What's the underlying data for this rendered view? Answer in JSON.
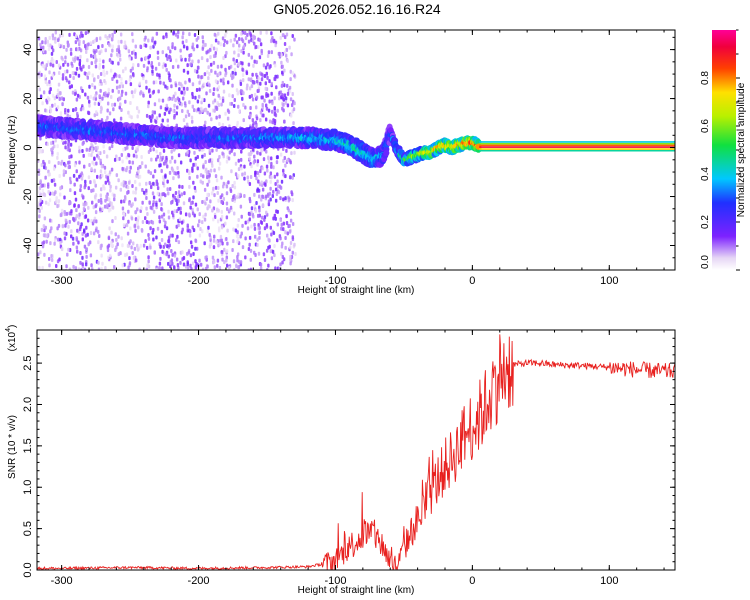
{
  "title": "GN05.2026.052.16.16.R24",
  "chart_data": [
    {
      "type": "heatmap",
      "xlabel": "Height of straight line (km)",
      "ylabel": "Frequency (Hz)",
      "xlim": [
        -318,
        148
      ],
      "ylim": [
        -50,
        48
      ],
      "xticks": [
        "-300",
        "-200",
        "-100",
        "0",
        "100"
      ],
      "yticks": [
        "40",
        "20",
        "0",
        "-20",
        "-40"
      ],
      "colorbar": {
        "label": "Normalized spectral amplitude",
        "range": [
          0,
          1
        ],
        "ticks": [
          "0.0",
          "0.2",
          "0.4",
          "0.6",
          "0.8"
        ],
        "colormap": "rainbow: white-violet-blue-cyan-green-yellow-red-magenta"
      },
      "ridge": {
        "x": [
          -318,
          -300,
          -280,
          -260,
          -240,
          -220,
          -200,
          -180,
          -160,
          -140,
          -120,
          -100,
          -90,
          -80,
          -72,
          -65,
          -60,
          -55,
          -50,
          -45,
          -40,
          -35,
          -30,
          -25,
          -20,
          -15,
          -10,
          -5,
          0,
          5,
          148
        ],
        "frequency": [
          9,
          8,
          7,
          6,
          5,
          4,
          4,
          4,
          4,
          4,
          4,
          3,
          1,
          -2,
          -5,
          -3,
          6,
          -1,
          -5,
          -4,
          -3,
          -2,
          -2,
          0,
          1,
          0,
          1,
          2,
          2,
          0.5,
          0.5
        ],
        "amplitude": [
          0.3,
          0.3,
          0.32,
          0.3,
          0.32,
          0.3,
          0.3,
          0.3,
          0.32,
          0.35,
          0.38,
          0.4,
          0.45,
          0.42,
          0.4,
          0.35,
          0.3,
          0.35,
          0.5,
          0.6,
          0.65,
          0.7,
          0.75,
          0.75,
          0.8,
          0.8,
          0.82,
          0.85,
          0.85,
          0.9,
          0.9
        ]
      },
      "noise_region_x": [
        -318,
        -130
      ]
    },
    {
      "type": "line",
      "xlabel": "Height of straight line (km)",
      "ylabel": "SNR (10 * v/v)",
      "yscale_label": "(x10",
      "yscale_exp": "4",
      "y_multiplier": 10000,
      "xlim": [
        -318,
        148
      ],
      "ylim": [
        0,
        2.9
      ],
      "xticks": [
        "-300",
        "-200",
        "-100",
        "0",
        "100"
      ],
      "yticks": [
        "0.0",
        "0.5",
        "1.0",
        "1.5",
        "2.0",
        "2.5"
      ],
      "series": [
        {
          "color": "#e8201e",
          "x": [
            -318,
            -300,
            -250,
            -200,
            -150,
            -120,
            -110,
            -100,
            -95,
            -90,
            -85,
            -80,
            -75,
            -70,
            -65,
            -60,
            -55,
            -50,
            -45,
            -40,
            -35,
            -30,
            -25,
            -20,
            -15,
            -10,
            -5,
            0,
            5,
            10,
            15,
            20,
            25,
            30,
            40,
            50,
            60,
            80,
            100,
            120,
            140,
            148
          ],
          "y": [
            0.02,
            0.02,
            0.03,
            0.02,
            0.03,
            0.04,
            0.07,
            0.12,
            0.2,
            0.28,
            0.35,
            0.42,
            0.45,
            0.4,
            0.28,
            0.1,
            0.05,
            0.25,
            0.45,
            0.6,
            0.75,
            0.95,
            1.1,
            1.25,
            1.35,
            1.5,
            1.65,
            1.75,
            1.85,
            2.0,
            2.2,
            2.38,
            2.45,
            2.48,
            2.5,
            2.5,
            2.48,
            2.47,
            2.45,
            2.42,
            2.4,
            2.4
          ]
        }
      ]
    }
  ]
}
